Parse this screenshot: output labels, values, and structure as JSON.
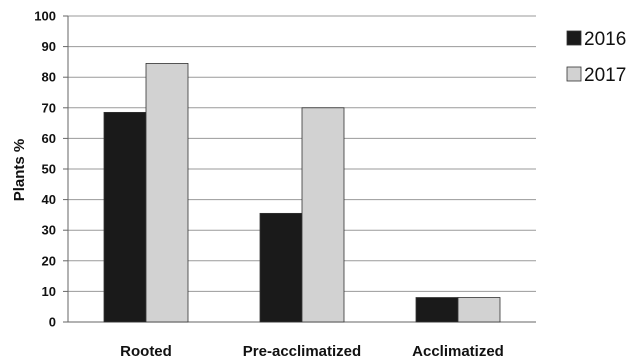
{
  "chart_data": {
    "type": "bar",
    "categories": [
      "Rooted",
      "Pre-acclimatized",
      "Acclimatized"
    ],
    "series": [
      {
        "name": "2016",
        "values": [
          68.5,
          35.5,
          8
        ],
        "color": "#1a1a1a"
      },
      {
        "name": "2017",
        "values": [
          84.5,
          70,
          8
        ],
        "color": "#d2d2d2"
      }
    ],
    "ylabel": "Plants %",
    "xlabel": "",
    "ylim": [
      0,
      100
    ],
    "yticks": [
      "0",
      "10",
      "20",
      "30",
      "40",
      "50",
      "60",
      "70",
      "80",
      "90",
      "100"
    ],
    "grid": true,
    "legend": "right"
  }
}
